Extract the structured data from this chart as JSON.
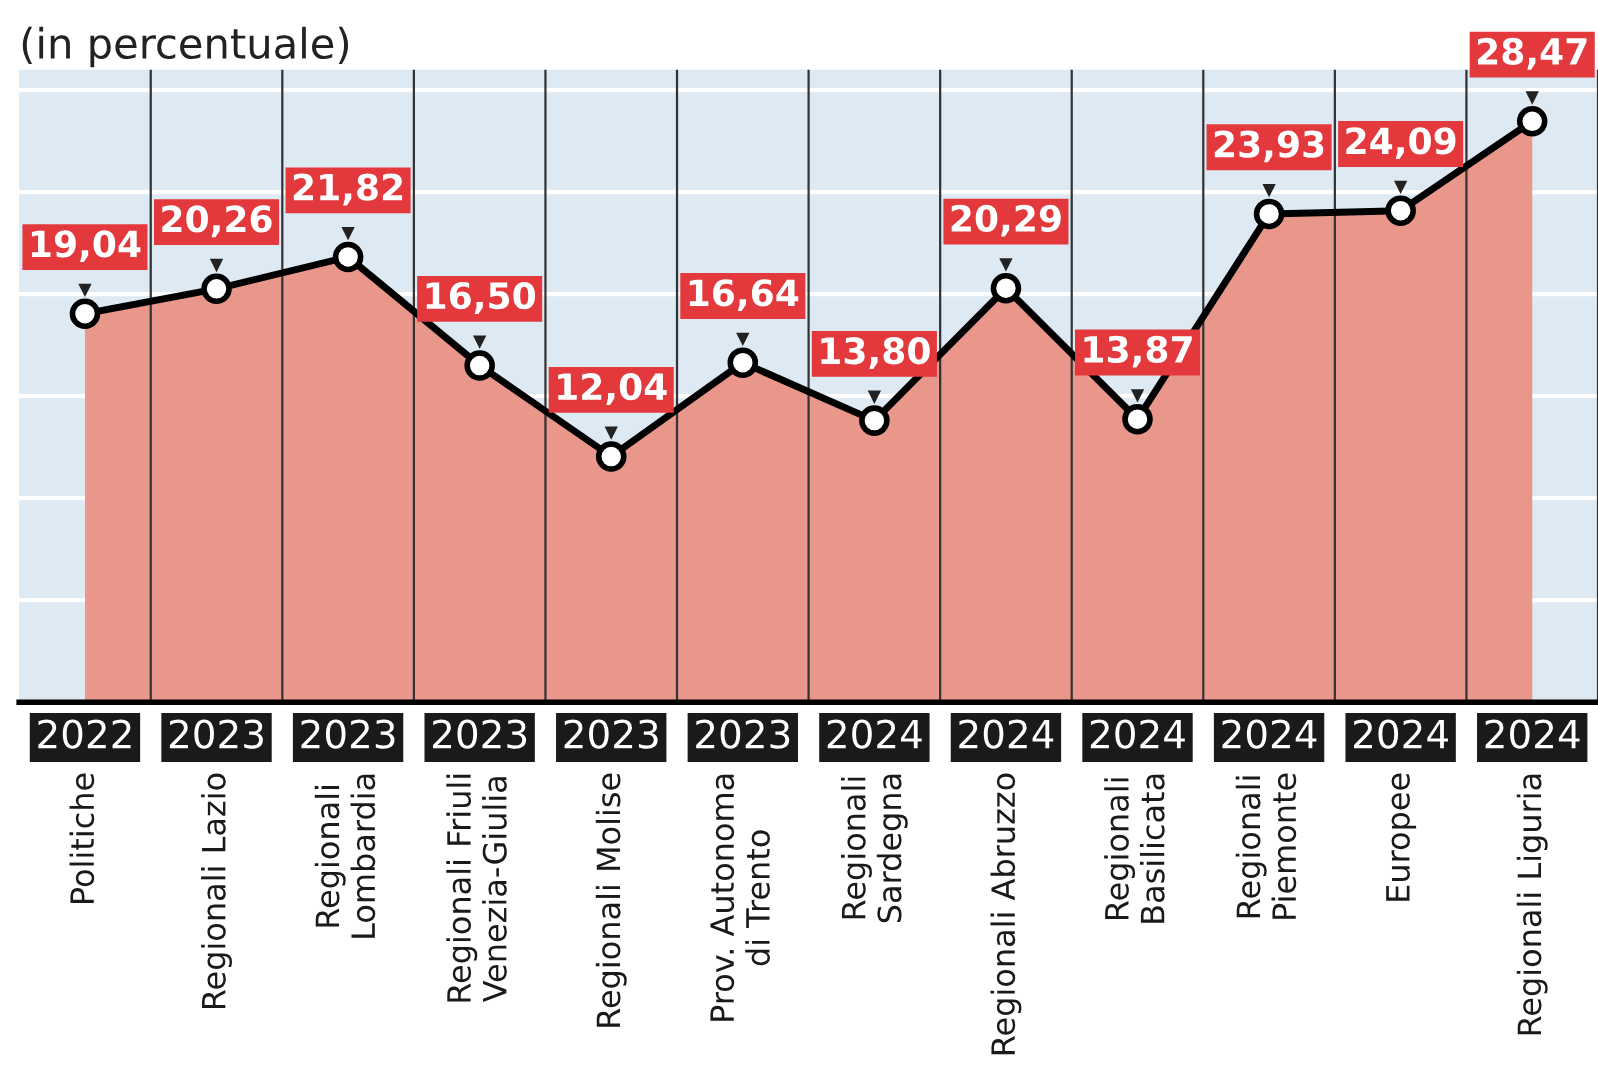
{
  "chart_data": {
    "type": "area",
    "title": "(in percentuale)",
    "categories": [
      "2022\nPolitiche",
      "2023\nRegionali Lazio",
      "2023\nRegionali\nLombardia",
      "2023\nRegionali Friuli\nVenezia-Giulia",
      "2023\nRegionali Molise",
      "2023\nProv. Autonoma\ndi Trento",
      "2024\nRegionali\nSardegna",
      "2024\nRegionali Abruzzo",
      "2024\nRegionali\nBasilicata",
      "2024\nRegionali\nPiemonte",
      "2024\nEuropee",
      "2024\nRegionali Liguria"
    ],
    "series": [
      {
        "color": "#e9968b",
        "values": [
          19.04,
          20.26,
          21.82,
          16.5,
          12.04,
          16.64,
          13.8,
          20.29,
          13.87,
          23.93,
          24.09,
          28.47
        ],
        "value_labels": [
          "19,04",
          "20,26",
          "21,82",
          "16,50",
          "12,04",
          "16,64",
          "13,80",
          "20,29",
          "13,87",
          "23,93",
          "24,09",
          "28,47"
        ]
      }
    ],
    "ylim": [
      0,
      31
    ],
    "yticks": [
      {
        "value": 5,
        "label": null
      },
      {
        "value": 10,
        "label": null
      },
      {
        "value": 15,
        "label": null
      },
      {
        "value": 20,
        "label": null
      },
      {
        "value": 25,
        "label": null
      },
      {
        "value": 30,
        "label": null
      }
    ],
    "tick_labels": "x",
    "grid": "y",
    "marker": "circle",
    "line_style": "solid"
  }
}
